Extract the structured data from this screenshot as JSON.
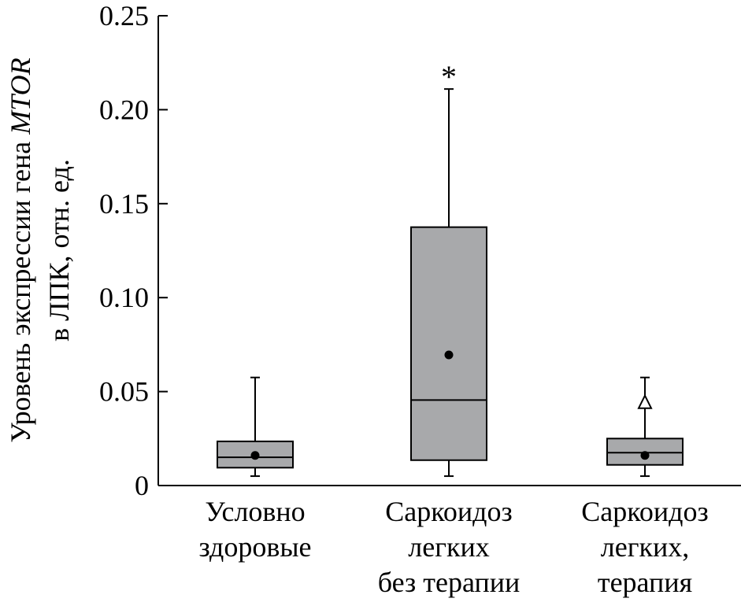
{
  "chart_data": {
    "type": "boxplot",
    "ylabel": {
      "line1_prefix": "Уровень экспрессии гена ",
      "line1_gene": "MTOR",
      "line2": "в ЛПК, отн. ед."
    },
    "ylim": [
      0,
      0.25
    ],
    "yticks": [
      {
        "value": 0,
        "label": "0"
      },
      {
        "value": 0.05,
        "label": "0.05"
      },
      {
        "value": 0.1,
        "label": "0.10"
      },
      {
        "value": 0.15,
        "label": "0.15"
      },
      {
        "value": 0.2,
        "label": "0.20"
      },
      {
        "value": 0.25,
        "label": "0.25"
      }
    ],
    "box_color": "#a8a9ab",
    "categories": [
      {
        "label_lines": [
          "Условно",
          "здоровые"
        ],
        "whisker_low": 0.005,
        "q1": 0.0095,
        "median": 0.015,
        "q3": 0.0235,
        "whisker_high": 0.0575,
        "mean": 0.016,
        "annotation": null
      },
      {
        "label_lines": [
          "Саркоидоз",
          "легких",
          "без терапии"
        ],
        "whisker_low": 0.005,
        "q1": 0.0135,
        "median": 0.0455,
        "q3": 0.1375,
        "whisker_high": 0.211,
        "mean": 0.0695,
        "annotation": {
          "type": "asterisk",
          "text": "*",
          "value": 0.222
        }
      },
      {
        "label_lines": [
          "Саркоидоз",
          "легких,",
          "терапия"
        ],
        "whisker_low": 0.005,
        "q1": 0.011,
        "median": 0.0175,
        "q3": 0.025,
        "whisker_high": 0.0575,
        "mean": 0.016,
        "annotation": {
          "type": "open-triangle",
          "value": 0.0445
        }
      }
    ]
  }
}
